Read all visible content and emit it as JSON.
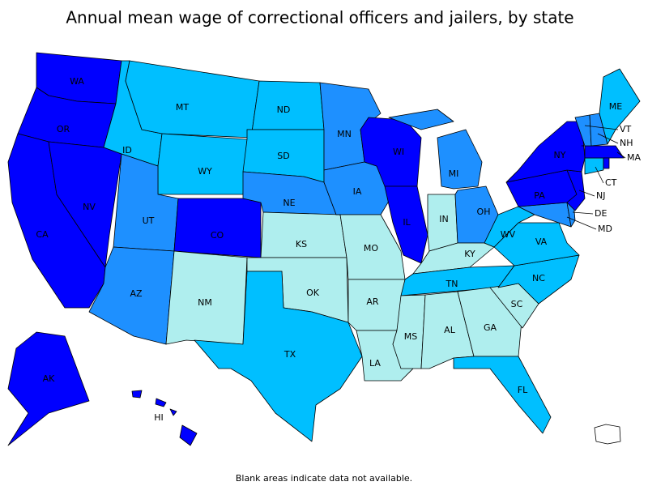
{
  "title": "Annual mean wage of correctional officers and jailers, by state",
  "note": "Blank areas indicate data not available.",
  "states": [
    {
      "label": "WA",
      "color": "#0000ff"
    },
    {
      "label": "OR",
      "color": "#0000ff"
    },
    {
      "label": "CA",
      "color": "#0000ff"
    },
    {
      "label": "NV",
      "color": "#0000ff"
    },
    {
      "label": "ID",
      "color": "#00bfff"
    },
    {
      "label": "MT",
      "color": "#00bfff"
    },
    {
      "label": "WY",
      "color": "#00bfff"
    },
    {
      "label": "UT",
      "color": "#1e90ff"
    },
    {
      "label": "CO",
      "color": "#0000ff"
    },
    {
      "label": "AZ",
      "color": "#1e90ff"
    },
    {
      "label": "NM",
      "color": "#afeeee"
    },
    {
      "label": "ND",
      "color": "#00bfff"
    },
    {
      "label": "SD",
      "color": "#00bfff"
    },
    {
      "label": "NE",
      "color": "#1e90ff"
    },
    {
      "label": "KS",
      "color": "#afeeee"
    },
    {
      "label": "OK",
      "color": "#afeeee"
    },
    {
      "label": "TX",
      "color": "#00bfff"
    },
    {
      "label": "MN",
      "color": "#1e90ff"
    },
    {
      "label": "IA",
      "color": "#1e90ff"
    },
    {
      "label": "MO",
      "color": "#afeeee"
    },
    {
      "label": "AR",
      "color": "#afeeee"
    },
    {
      "label": "LA",
      "color": "#afeeee"
    },
    {
      "label": "WI",
      "color": "#0000ff"
    },
    {
      "label": "IL",
      "color": "#0000ff"
    },
    {
      "label": "MI",
      "color": "#1e90ff"
    },
    {
      "label": "IN",
      "color": "#afeeee"
    },
    {
      "label": "OH",
      "color": "#1e90ff"
    },
    {
      "label": "KY",
      "color": "#afeeee"
    },
    {
      "label": "TN",
      "color": "#00bfff"
    },
    {
      "label": "MS",
      "color": "#afeeee"
    },
    {
      "label": "AL",
      "color": "#afeeee"
    },
    {
      "label": "GA",
      "color": "#afeeee"
    },
    {
      "label": "FL",
      "color": "#00bfff"
    },
    {
      "label": "SC",
      "color": "#afeeee"
    },
    {
      "label": "NC",
      "color": "#00bfff"
    },
    {
      "label": "VA",
      "color": "#00bfff"
    },
    {
      "label": "WV",
      "color": "#00bfff"
    },
    {
      "label": "MD",
      "color": "#1e90ff"
    },
    {
      "label": "DE",
      "color": "#1e90ff"
    },
    {
      "label": "PA",
      "color": "#0000ff"
    },
    {
      "label": "NJ",
      "color": "#0000ff"
    },
    {
      "label": "NY",
      "color": "#0000ff"
    },
    {
      "label": "CT",
      "color": "#00bfff"
    },
    {
      "label": "MA",
      "color": "#0000ff"
    },
    {
      "label": "VT",
      "color": "#1e90ff"
    },
    {
      "label": "NH",
      "color": "#1e90ff"
    },
    {
      "label": "ME",
      "color": "#00bfff"
    },
    {
      "label": "AK",
      "color": "#0000ff"
    },
    {
      "label": "HI",
      "color": "#0000ff"
    }
  ]
}
